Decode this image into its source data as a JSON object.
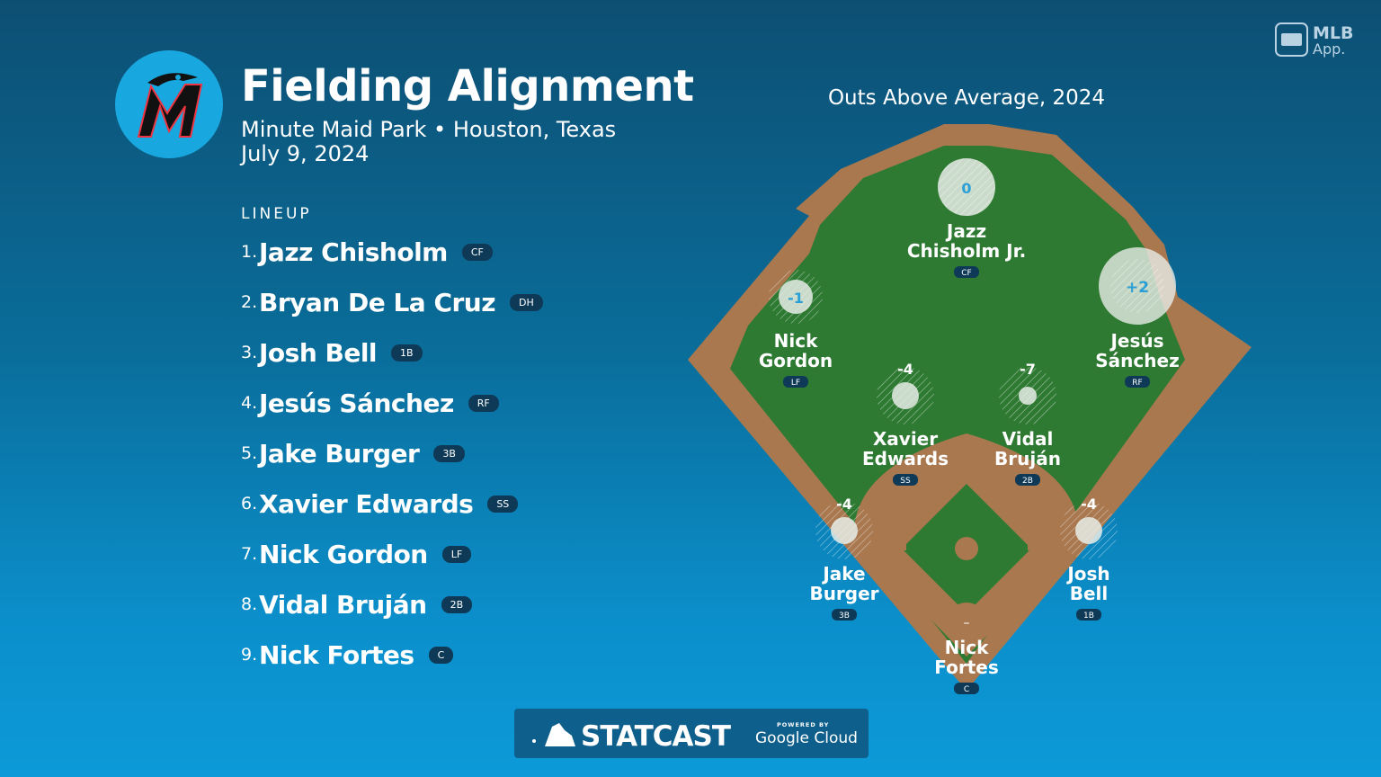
{
  "header": {
    "title": "Fielding Alignment",
    "venue": "Minute Maid Park • Houston, Texas",
    "date": "July 9, 2024"
  },
  "brand": {
    "app_label_1": "MLB",
    "app_label_2": "App.",
    "statcast": "STATCAST",
    "powered_by": "POWERED BY",
    "google_cloud": "Google Cloud"
  },
  "lineup": {
    "heading": "LINEUP",
    "players": [
      {
        "num": "1.",
        "name": "Jazz Chisholm",
        "pos": "CF"
      },
      {
        "num": "2.",
        "name": "Bryan De La Cruz",
        "pos": "DH"
      },
      {
        "num": "3.",
        "name": "Josh Bell",
        "pos": "1B"
      },
      {
        "num": "4.",
        "name": "Jesús Sánchez",
        "pos": "RF"
      },
      {
        "num": "5.",
        "name": "Jake Burger",
        "pos": "3B"
      },
      {
        "num": "6.",
        "name": "Xavier Edwards",
        "pos": "SS"
      },
      {
        "num": "7.",
        "name": "Nick Gordon",
        "pos": "LF"
      },
      {
        "num": "8.",
        "name": "Vidal Bruján",
        "pos": "2B"
      },
      {
        "num": "9.",
        "name": "Nick Fortes",
        "pos": "C"
      }
    ]
  },
  "field": {
    "title": "Outs Above Average, 2024",
    "fielders": [
      {
        "line1": "Jazz",
        "line2": "Chisholm Jr.",
        "pos": "CF",
        "oaa": "0"
      },
      {
        "line1": "Nick",
        "line2": "Gordon",
        "pos": "LF",
        "oaa": "-1"
      },
      {
        "line1": "Jesús",
        "line2": "Sánchez",
        "pos": "RF",
        "oaa": "+2"
      },
      {
        "line1": "Xavier",
        "line2": "Edwards",
        "pos": "SS",
        "oaa": "-4"
      },
      {
        "line1": "Vidal",
        "line2": "Bruján",
        "pos": "2B",
        "oaa": "-7"
      },
      {
        "line1": "Jake",
        "line2": "Burger",
        "pos": "3B",
        "oaa": "-4"
      },
      {
        "line1": "Josh",
        "line2": "Bell",
        "pos": "1B",
        "oaa": "-4"
      },
      {
        "line1": "Nick",
        "line2": "Fortes",
        "pos": "C",
        "oaa": "–"
      }
    ]
  },
  "colors": {
    "grass": "#2f7a33",
    "dirt": "#a9784f",
    "badge": "#0e3a57",
    "oaa_text": "#2a9fd6"
  }
}
